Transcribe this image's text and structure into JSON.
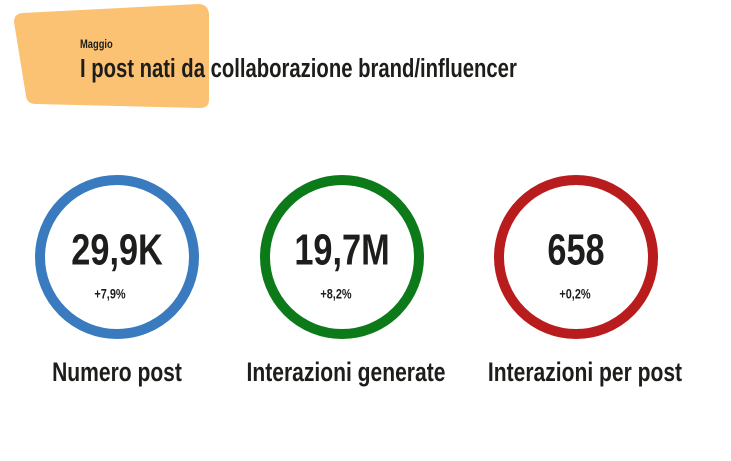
{
  "header": {
    "kicker": "Maggio",
    "title": "I post nati da collaborazione brand/influencer"
  },
  "kpis": [
    {
      "value": "29,9K",
      "change": "+7,9%",
      "label": "Numero post"
    },
    {
      "value": "19,7M",
      "change": "+8,2%",
      "label": "Interazioni generate"
    },
    {
      "value": "658",
      "change": "+0,2%",
      "label": "Interazioni per post"
    }
  ]
}
